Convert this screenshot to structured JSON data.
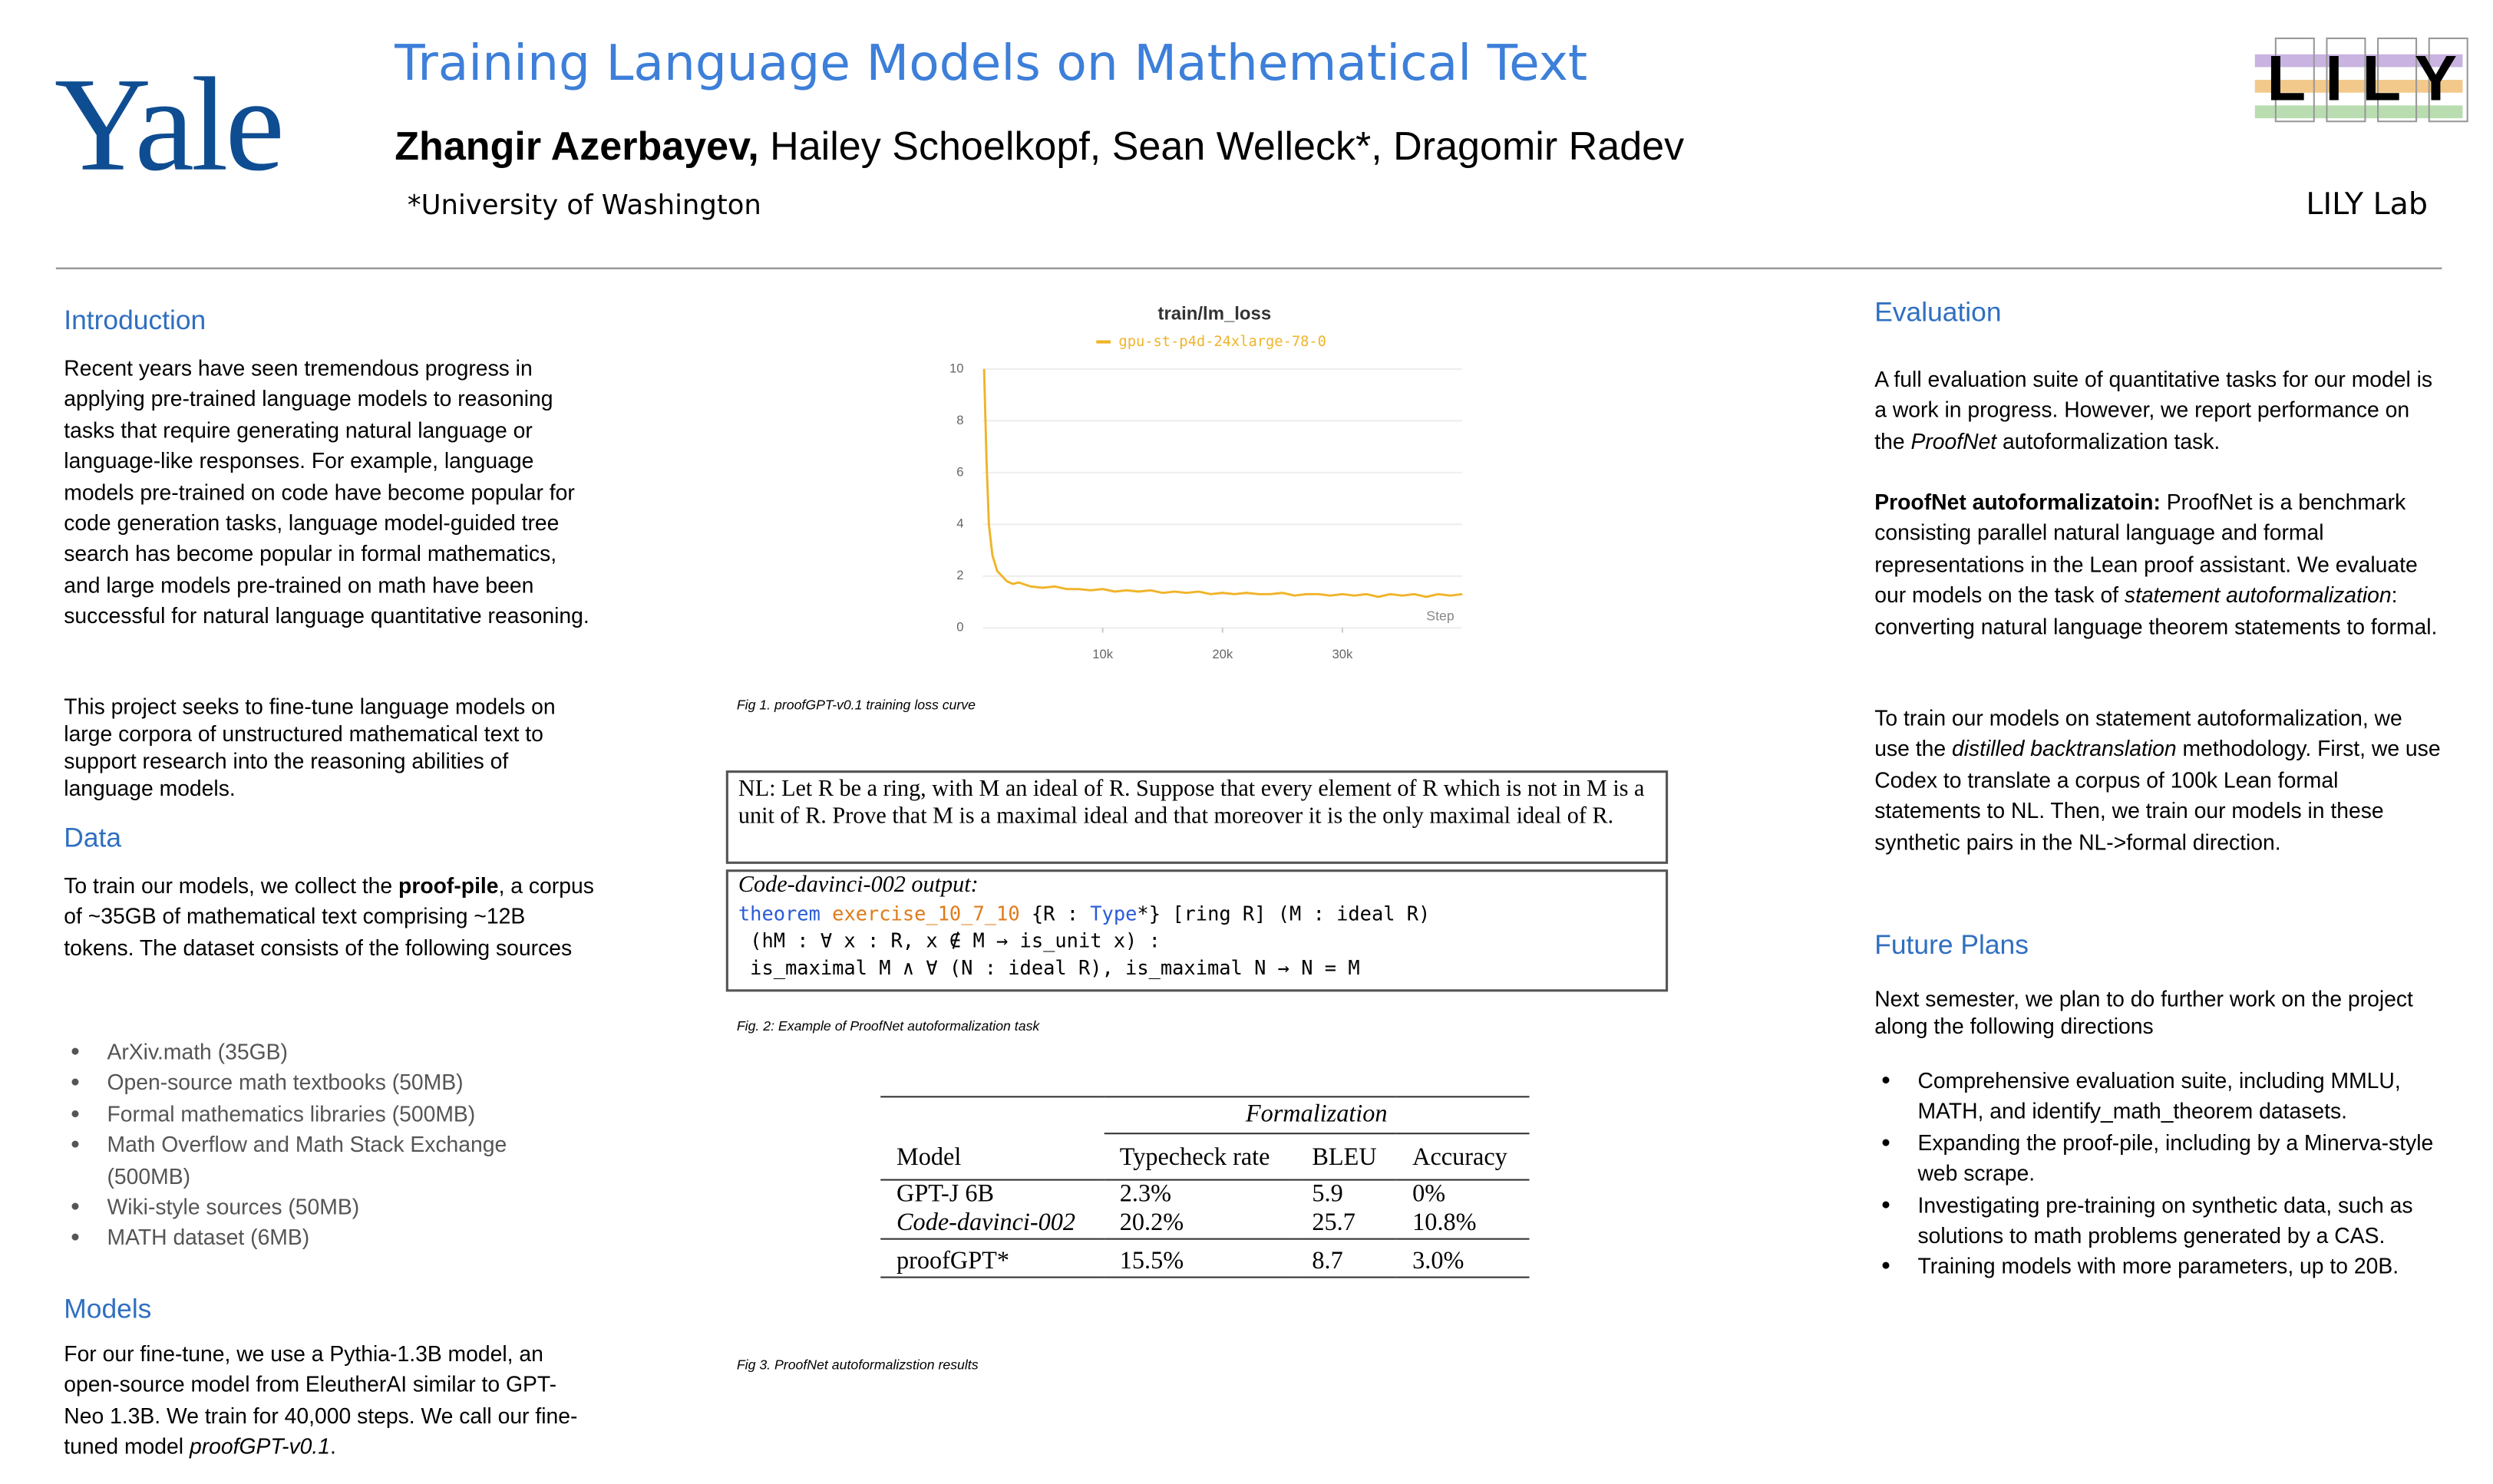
{
  "header": {
    "logo": "Yale",
    "title": "Training Language Models on Mathematical Text",
    "authors": [
      {
        "text": "Zhangir Azerbayev,",
        "style": "bold"
      },
      {
        "text": " Hailey Schoelkopf, Sean Welleck*, Dragomir Radev"
      }
    ],
    "affiliation": "*University of Washington",
    "lab_logo": "LILY",
    "lab": "LILY Lab"
  },
  "introduction": {
    "heading": "Introduction",
    "paragraphs": [
      [
        {
          "text": "Recent years have seen tremendous progress in applying pre-trained language models to reasoning tasks that require generating natural language or language-like responses. For example, language models pre-trained on code have become popular for code generation tasks, language model-guided tree search has become popular in formal mathematics, and large models pre-trained on math have been successful for natural language quantitative reasoning."
        }
      ],
      [
        {
          "text": "This project seeks to fine-tune language models on large corpora of unstructured mathematical text to support research into the reasoning abilities of language models."
        }
      ]
    ]
  },
  "data": {
    "heading": "Data",
    "paragraphs": [
      [
        {
          "text": "To train our models, we collect the "
        },
        {
          "text": "proof-pile",
          "style": "bold"
        },
        {
          "text": ", a corpus of ~35GB of mathematical text comprising ~12B tokens.  The dataset consists of the following sources"
        }
      ]
    ],
    "list": [
      "ArXiv.math (35GB)",
      "Open-source math textbooks (50MB)",
      "Formal mathematics libraries (500MB)",
      "Math Overflow and Math Stack Exchange (500MB)",
      "Wiki-style sources (50MB)",
      "MATH dataset (6MB)"
    ]
  },
  "models": {
    "heading": "Models",
    "paragraphs": [
      [
        {
          "text": "For our fine-tune, we use a Pythia-1.3B model, an open-source model from EleutherAI similar to GPT-Neo 1.3B. We train for 40,000 steps. We call our fine-tuned model "
        },
        {
          "text": "proofGPT-v0.1",
          "style": "italic"
        },
        {
          "text": "."
        }
      ]
    ]
  },
  "figure_1": {
    "type": "line",
    "title": "train/lm_loss",
    "xlabel": "Step",
    "series": [
      {
        "name": "gpu-st-p4d-24xlarge-78-0",
        "color": "#f0b429",
        "x": [
          100,
          300,
          500,
          800,
          1200,
          1600,
          2000,
          2500,
          3000,
          4000,
          5000,
          6000,
          7000,
          8000,
          9000,
          10000,
          11000,
          12000,
          13000,
          14000,
          15000,
          16000,
          17000,
          18000,
          19000,
          20000,
          21000,
          22000,
          23000,
          24000,
          25000,
          26000,
          27000,
          28000,
          29000,
          30000,
          31000,
          32000,
          33000,
          34000,
          35000,
          36000,
          37000,
          38000,
          39000,
          40000
        ],
        "values": [
          10,
          6.5,
          4,
          2.8,
          2.2,
          2,
          1.8,
          1.7,
          1.75,
          1.6,
          1.55,
          1.6,
          1.5,
          1.5,
          1.45,
          1.5,
          1.4,
          1.45,
          1.4,
          1.45,
          1.35,
          1.4,
          1.35,
          1.4,
          1.3,
          1.35,
          1.3,
          1.35,
          1.3,
          1.3,
          1.35,
          1.25,
          1.3,
          1.3,
          1.25,
          1.3,
          1.25,
          1.3,
          1.2,
          1.3,
          1.25,
          1.3,
          1.2,
          1.3,
          1.25,
          1.3
        ]
      }
    ],
    "xlim": [
      0,
      40000
    ],
    "ylim": [
      0,
      10
    ],
    "xticks": [
      {
        "value": 10000,
        "label": "10k"
      },
      {
        "value": 20000,
        "label": "20k"
      },
      {
        "value": 30000,
        "label": "30k"
      }
    ],
    "yticks": [
      0,
      2,
      4,
      6,
      8,
      10
    ],
    "grid": true,
    "caption": "Fig 1. proofGPT-v0.1 training loss curve"
  },
  "figure_2": {
    "nl": "NL: Let R be a ring, with M an ideal of R. Suppose that every element of R which is not in M is a unit of R. Prove that M is a maximal ideal and that moreover it is the only maximal ideal of R.",
    "output_label": "Code-davinci-002 output:",
    "code": [
      [
        {
          "text": "theorem",
          "color": "#2a5bd7"
        },
        {
          "text": " "
        },
        {
          "text": "exercise_10_7_10",
          "color": "#e07b1a"
        },
        {
          "text": " {R : "
        },
        {
          "text": "Type",
          "color": "#2a5bd7"
        },
        {
          "text": "*} [ring R] (M : ideal R)"
        }
      ],
      [
        {
          "text": " (hM : ∀ x : R, x ∉ M → is_unit x) :"
        }
      ],
      [
        {
          "text": " is_maximal M ∧ ∀ (N : ideal R), is_maximal N → N = M"
        }
      ]
    ],
    "caption": "Fig. 2: Example of ProofNet autoformalization task"
  },
  "figure_3": {
    "group_header": "Formalization",
    "columns": [
      "Model",
      "Typecheck rate",
      "BLEU",
      "Accuracy"
    ],
    "rows": [
      [
        "GPT-J 6B",
        "2.3%",
        "5.9",
        "0%"
      ],
      [
        "Code-davinci-002",
        "20.2%",
        "25.7",
        "10.8%"
      ],
      [
        "proofGPT*",
        "15.5%",
        "8.7",
        "3.0%"
      ]
    ],
    "caption": "Fig 3. ProofNet autoformalizstion results"
  },
  "evaluation": {
    "heading": "Evaluation",
    "paragraphs": [
      [
        {
          "text": "A full evaluation suite of quantitative tasks for our model is a work in progress. However, we report performance on the "
        },
        {
          "text": "ProofNet",
          "style": "italic"
        },
        {
          "text": " autoformalization task."
        }
      ],
      [
        {
          "text": "ProofNet autoformalizatoin:",
          "style": "bold"
        },
        {
          "text": " ProofNet is a benchmark consisting parallel natural language and formal representations in the Lean proof assistant. We evaluate our models on the task of "
        },
        {
          "text": "statement autoformalization",
          "style": "italic"
        },
        {
          "text": ": converting natural language theorem statements to formal."
        }
      ],
      [
        {
          "text": "To train our models on statement autoformalization, we use the "
        },
        {
          "text": "distilled backtranslation",
          "style": "italic"
        },
        {
          "text": " methodology. First, we use Codex to translate a corpus of 100k Lean formal statements to NL. Then, we train our models in these synthetic pairs in the NL->formal direction."
        }
      ]
    ]
  },
  "future_plans": {
    "heading": "Future Plans",
    "paragraphs": [
      [
        {
          "text": "Next semester, we plan to do further work on the project along the following directions"
        }
      ]
    ],
    "list": [
      "Comprehensive evaluation suite, including MMLU, MATH, and identify_math_theorem datasets.",
      "Expanding the proof-pile, including by a Minerva-style web scrape.",
      "Investigating pre-training on synthetic data, such as solutions to math problems generated by a CAS.",
      "Training models with more parameters, up to 20B."
    ]
  }
}
